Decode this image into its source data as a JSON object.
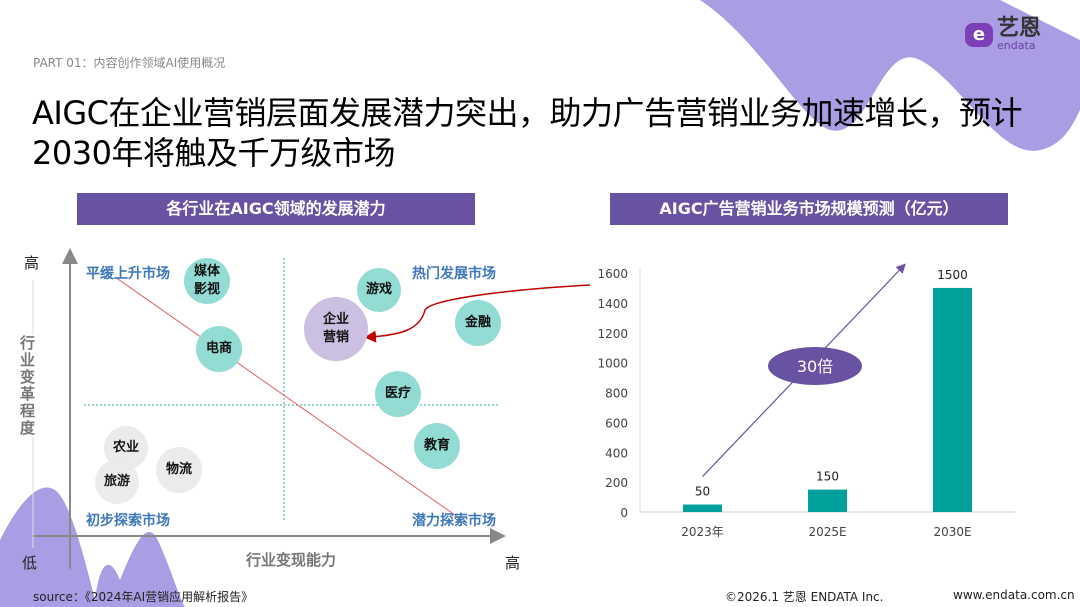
{
  "header": {
    "part_label": "PART 01：内容创作领域AI使用概况",
    "title": "AIGC在企业营销层面发展潜力突出，助力广告营销业务加速增长，预计2030年将触及千万级市场"
  },
  "logo": {
    "cn": "艺恩",
    "en": "endata"
  },
  "left_panel": {
    "banner": "各行业在AIGC领域的发展潜力",
    "y_high": "高",
    "y_low": "低",
    "x_high": "高",
    "y_axis_label": "行业变革程度",
    "x_axis_label": "行业变现能力",
    "quadrants": {
      "top_left": "平缓上升市场",
      "top_right": "热门发展市场",
      "bottom_left": "初步探索市场",
      "bottom_right": "潜力探索市场"
    },
    "bubbles": [
      {
        "label": "媒体影视",
        "style": "teal"
      },
      {
        "label": "电商",
        "style": "teal"
      },
      {
        "label": "企业营销",
        "style": "purple"
      },
      {
        "label": "游戏",
        "style": "teal"
      },
      {
        "label": "金融",
        "style": "teal"
      },
      {
        "label": "医疗",
        "style": "teal"
      },
      {
        "label": "教育",
        "style": "teal"
      },
      {
        "label": "农业",
        "style": "gray"
      },
      {
        "label": "旅游",
        "style": "gray"
      },
      {
        "label": "物流",
        "style": "gray"
      }
    ]
  },
  "chart_data": {
    "type": "bar",
    "title": "AIGC广告营销业务市场规模预测（亿元）",
    "categories": [
      "2023年",
      "2025E",
      "2030E"
    ],
    "values": [
      50,
      150,
      1500
    ],
    "ylim": [
      0,
      1600
    ],
    "yticks": [
      0,
      200,
      400,
      600,
      800,
      1000,
      1200,
      1400,
      1600
    ],
    "annotation": "30倍",
    "bar_color": "#00a19a",
    "grid": false
  },
  "footer": {
    "source": "source：《2024年AI营销应用解析报告》",
    "copyright": "©2026.1  艺恩 ENDATA Inc.",
    "website": "www.endata.com.cn"
  },
  "colors": {
    "accent": "#6a52a3",
    "teal": "#93dcd4",
    "quadrant_label": "#3f78b8"
  }
}
